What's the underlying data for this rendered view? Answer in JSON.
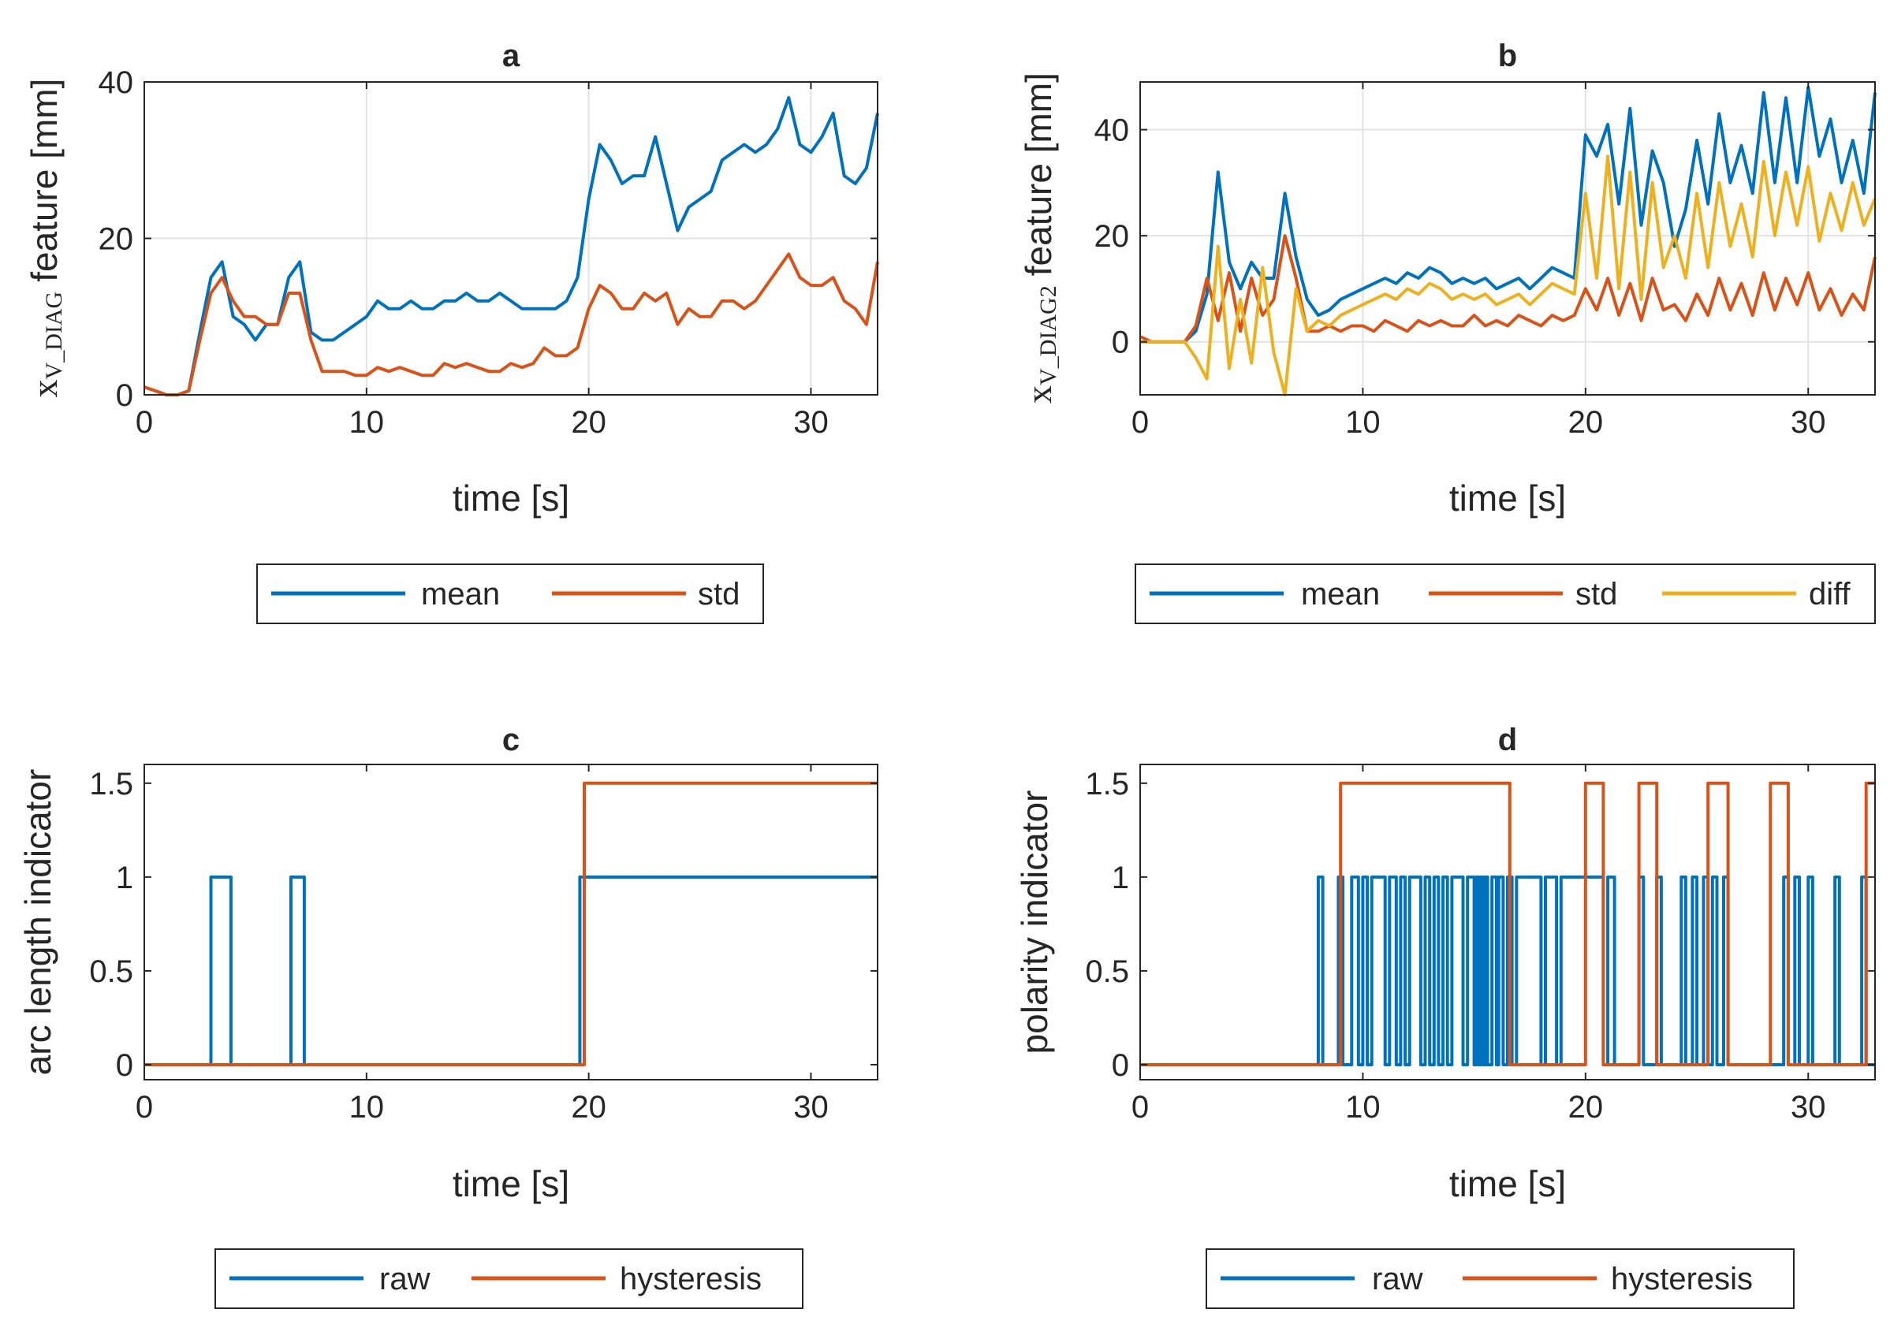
{
  "figure": {
    "xlabel": "time [s]",
    "colors": {
      "mean": "#0072BD",
      "std": "#D95319",
      "diff": "#EDB120",
      "axis": "#262626",
      "grid": "#e2e2e2"
    }
  },
  "chart_data": [
    {
      "id": "a",
      "type": "line",
      "title": "a",
      "xlabel": "time [s]",
      "ylabel": {
        "symbol": "x",
        "sub_pre": "V",
        "sub": "_DIAG",
        "text": "feature [mm]"
      },
      "xlim": [
        0,
        33
      ],
      "ylim": [
        0,
        40
      ],
      "xticks": [
        0,
        10,
        20,
        30
      ],
      "yticks": [
        0,
        20,
        40
      ],
      "grid": true,
      "legend_position": "bottom-outside",
      "series": [
        {
          "name": "mean",
          "color": "#0072BD",
          "x": [
            0,
            0.5,
            1,
            1.5,
            2,
            2.5,
            3,
            3.5,
            4,
            4.5,
            5,
            5.5,
            6,
            6.5,
            7,
            7.5,
            8,
            8.5,
            9,
            9.5,
            10,
            10.5,
            11,
            11.5,
            12,
            12.5,
            13,
            13.5,
            14,
            14.5,
            15,
            15.5,
            16,
            16.5,
            17,
            17.5,
            18,
            18.5,
            19,
            19.5,
            20,
            20.5,
            21,
            21.5,
            22,
            22.5,
            23,
            23.5,
            24,
            24.5,
            25,
            25.5,
            26,
            26.5,
            27,
            27.5,
            28,
            28.5,
            29,
            29.5,
            30,
            30.5,
            31,
            31.5,
            32,
            32.5,
            33
          ],
          "y": [
            1,
            0.5,
            0,
            0,
            0.5,
            8,
            15,
            17,
            10,
            9,
            7,
            9,
            9,
            15,
            17,
            8,
            7,
            7,
            8,
            9,
            10,
            12,
            11,
            11,
            12,
            11,
            11,
            12,
            12,
            13,
            12,
            12,
            13,
            12,
            11,
            11,
            11,
            11,
            12,
            15,
            25,
            32,
            30,
            27,
            28,
            28,
            33,
            27,
            21,
            24,
            25,
            26,
            30,
            31,
            32,
            31,
            32,
            34,
            38,
            32,
            31,
            33,
            36,
            28,
            27,
            29,
            36
          ]
        },
        {
          "name": "std",
          "color": "#D95319",
          "x": [
            0,
            0.5,
            1,
            1.5,
            2,
            2.5,
            3,
            3.5,
            4,
            4.5,
            5,
            5.5,
            6,
            6.5,
            7,
            7.5,
            8,
            8.5,
            9,
            9.5,
            10,
            10.5,
            11,
            11.5,
            12,
            12.5,
            13,
            13.5,
            14,
            14.5,
            15,
            15.5,
            16,
            16.5,
            17,
            17.5,
            18,
            18.5,
            19,
            19.5,
            20,
            20.5,
            21,
            21.5,
            22,
            22.5,
            23,
            23.5,
            24,
            24.5,
            25,
            25.5,
            26,
            26.5,
            27,
            27.5,
            28,
            28.5,
            29,
            29.5,
            30,
            30.5,
            31,
            31.5,
            32,
            32.5,
            33
          ],
          "y": [
            1,
            0.5,
            0,
            0,
            0.5,
            7,
            13,
            15,
            12,
            10,
            10,
            9,
            9,
            13,
            13,
            7,
            3,
            3,
            3,
            2.5,
            2.5,
            3.5,
            3,
            3.5,
            3,
            2.5,
            2.5,
            4,
            3.5,
            4,
            3.5,
            3,
            3,
            4,
            3.5,
            4,
            6,
            5,
            5,
            6,
            11,
            14,
            13,
            11,
            11,
            13,
            12,
            13,
            9,
            11,
            10,
            10,
            12,
            12,
            11,
            12,
            14,
            16,
            18,
            15,
            14,
            14,
            15,
            12,
            11,
            9,
            17
          ]
        }
      ]
    },
    {
      "id": "b",
      "type": "line",
      "title": "b",
      "xlabel": "time [s]",
      "ylabel": {
        "symbol": "x",
        "sub_pre": "V",
        "sub": "_DIAG2",
        "text": "feature [mm]"
      },
      "xlim": [
        0,
        33
      ],
      "ylim": [
        -10,
        49
      ],
      "xticks": [
        0,
        10,
        20,
        30
      ],
      "yticks": [
        0,
        20,
        40
      ],
      "grid": true,
      "legend_position": "bottom-outside",
      "series": [
        {
          "name": "mean",
          "color": "#0072BD",
          "x": [
            0,
            0.5,
            1,
            1.5,
            2,
            2.5,
            3,
            3.5,
            4,
            4.5,
            5,
            5.5,
            6,
            6.5,
            7,
            7.5,
            8,
            8.5,
            9,
            9.5,
            10,
            10.5,
            11,
            11.5,
            12,
            12.5,
            13,
            13.5,
            14,
            14.5,
            15,
            15.5,
            16,
            16.5,
            17,
            17.5,
            18,
            18.5,
            19,
            19.5,
            20,
            20.5,
            21,
            21.5,
            22,
            22.5,
            23,
            23.5,
            24,
            24.5,
            25,
            25.5,
            26,
            26.5,
            27,
            27.5,
            28,
            28.5,
            29,
            29.5,
            30,
            30.5,
            31,
            31.5,
            32,
            32.5,
            33
          ],
          "y": [
            0,
            0,
            0,
            0,
            0,
            2,
            9,
            32,
            15,
            10,
            15,
            12,
            12,
            28,
            16,
            8,
            5,
            6,
            8,
            9,
            10,
            11,
            12,
            11,
            13,
            12,
            14,
            13,
            11,
            12,
            11,
            12,
            10,
            11,
            12,
            10,
            12,
            14,
            13,
            12,
            39,
            35,
            41,
            26,
            44,
            22,
            36,
            30,
            18,
            25,
            38,
            26,
            43,
            30,
            37,
            28,
            47,
            30,
            46,
            30,
            48,
            35,
            42,
            30,
            38,
            28,
            47
          ]
        },
        {
          "name": "std",
          "color": "#D95319",
          "x": [
            0,
            0.5,
            1,
            1.5,
            2,
            2.5,
            3,
            3.5,
            4,
            4.5,
            5,
            5.5,
            6,
            6.5,
            7,
            7.5,
            8,
            8.5,
            9,
            9.5,
            10,
            10.5,
            11,
            11.5,
            12,
            12.5,
            13,
            13.5,
            14,
            14.5,
            15,
            15.5,
            16,
            16.5,
            17,
            17.5,
            18,
            18.5,
            19,
            19.5,
            20,
            20.5,
            21,
            21.5,
            22,
            22.5,
            23,
            23.5,
            24,
            24.5,
            25,
            25.5,
            26,
            26.5,
            27,
            27.5,
            28,
            28.5,
            29,
            29.5,
            30,
            30.5,
            31,
            31.5,
            32,
            32.5,
            33
          ],
          "y": [
            1,
            0,
            0,
            0,
            0,
            3,
            12,
            4,
            13,
            2,
            12,
            5,
            8,
            20,
            12,
            2,
            2,
            3,
            2,
            3,
            3,
            2,
            4,
            3,
            2,
            4,
            3,
            4,
            3,
            3,
            5,
            3,
            4,
            3,
            5,
            4,
            3,
            5,
            4,
            5,
            10,
            6,
            12,
            5,
            11,
            4,
            12,
            6,
            7,
            4,
            9,
            5,
            12,
            6,
            11,
            5,
            13,
            6,
            12,
            7,
            13,
            6,
            10,
            5,
            9,
            6,
            16
          ]
        },
        {
          "name": "diff",
          "color": "#EDB120",
          "x": [
            0,
            0.5,
            1,
            1.5,
            2,
            2.5,
            3,
            3.5,
            4,
            4.5,
            5,
            5.5,
            6,
            6.5,
            7,
            7.5,
            8,
            8.5,
            9,
            9.5,
            10,
            10.5,
            11,
            11.5,
            12,
            12.5,
            13,
            13.5,
            14,
            14.5,
            15,
            15.5,
            16,
            16.5,
            17,
            17.5,
            18,
            18.5,
            19,
            19.5,
            20,
            20.5,
            21,
            21.5,
            22,
            22.5,
            23,
            23.5,
            24,
            24.5,
            25,
            25.5,
            26,
            26.5,
            27,
            27.5,
            28,
            28.5,
            29,
            29.5,
            30,
            30.5,
            31,
            31.5,
            32,
            32.5,
            33
          ],
          "y": [
            0,
            0,
            0,
            0,
            0,
            -3,
            -7,
            18,
            -5,
            8,
            -4,
            14,
            -2,
            -10,
            10,
            2,
            4,
            3,
            5,
            6,
            7,
            8,
            9,
            8,
            10,
            9,
            11,
            10,
            8,
            9,
            8,
            9,
            7,
            8,
            9,
            7,
            9,
            11,
            10,
            9,
            28,
            12,
            35,
            10,
            32,
            8,
            30,
            14,
            20,
            12,
            28,
            14,
            30,
            18,
            26,
            16,
            34,
            20,
            32,
            22,
            33,
            19,
            28,
            21,
            30,
            22,
            27
          ]
        }
      ]
    },
    {
      "id": "c",
      "type": "line",
      "title": "c",
      "xlabel": "time [s]",
      "ylabel_text": "arc length indicator",
      "xlim": [
        0,
        33
      ],
      "ylim": [
        -0.08,
        1.6
      ],
      "xticks": [
        0,
        10,
        20,
        30
      ],
      "yticks": [
        0,
        0.5,
        1,
        1.5
      ],
      "grid": false,
      "legend_position": "bottom-outside",
      "series": [
        {
          "name": "raw",
          "color": "#0072BD",
          "step": true,
          "x": [
            0,
            3,
            3.9,
            6.6,
            7.2,
            19.6,
            33
          ],
          "y": [
            0,
            1,
            0,
            1,
            0,
            1,
            1
          ]
        },
        {
          "name": "hysteresis",
          "color": "#D95319",
          "step": true,
          "x": [
            0,
            19.8,
            33
          ],
          "y": [
            0,
            1.5,
            1.5
          ]
        }
      ]
    },
    {
      "id": "d",
      "type": "line",
      "title": "d",
      "xlabel": "time [s]",
      "ylabel_text": "polarity indicator",
      "xlim": [
        0,
        33
      ],
      "ylim": [
        -0.08,
        1.6
      ],
      "xticks": [
        0,
        10,
        20,
        30
      ],
      "yticks": [
        0,
        0.5,
        1,
        1.5
      ],
      "grid": false,
      "legend_position": "bottom-outside",
      "series": [
        {
          "name": "raw",
          "color": "#0072BD",
          "step": true,
          "x": [
            0,
            8.0,
            8.2,
            8.9,
            9.1,
            9.5,
            9.8,
            10.0,
            10.2,
            10.4,
            11.0,
            11.2,
            11.5,
            11.7,
            11.9,
            12.1,
            12.6,
            12.8,
            13.0,
            13.2,
            13.4,
            13.6,
            13.8,
            14.0,
            14.5,
            14.7,
            15.0,
            15.1,
            15.2,
            15.3,
            15.4,
            15.5,
            15.6,
            15.8,
            16.0,
            16.1,
            16.3,
            16.5,
            16.7,
            16.9,
            18.0,
            18.2,
            18.7,
            18.9,
            20.0,
            20.8,
            21.0,
            21.3,
            22.4,
            22.6,
            23.2,
            23.4,
            24.3,
            24.5,
            24.8,
            25.0,
            25.3,
            25.5,
            25.7,
            25.9,
            26.2,
            26.4,
            28.9,
            29.1,
            29.4,
            29.6,
            30.0,
            30.2,
            31.2,
            31.4,
            32.4,
            32.6,
            33.0
          ],
          "y": [
            0,
            1,
            0,
            1,
            0,
            1,
            0,
            1,
            0,
            1,
            0,
            1,
            0,
            1,
            0,
            1,
            0,
            1,
            0,
            1,
            0,
            1,
            0,
            1,
            0,
            1,
            0,
            1,
            0,
            1,
            0,
            1,
            0,
            1,
            0,
            1,
            0,
            1,
            0,
            1,
            0,
            1,
            0,
            1,
            1,
            0,
            1,
            0,
            1,
            0,
            1,
            0,
            1,
            0,
            1,
            0,
            1,
            0,
            1,
            0,
            1,
            0,
            1,
            0,
            1,
            0,
            1,
            0,
            1,
            0,
            1,
            0,
            0
          ]
        },
        {
          "name": "hysteresis",
          "color": "#D95319",
          "step": true,
          "x": [
            0,
            9.0,
            16.6,
            20.0,
            20.8,
            22.4,
            23.2,
            25.5,
            26.4,
            28.3,
            29.1,
            32.6,
            33
          ],
          "y": [
            0,
            1.5,
            0,
            1.5,
            0,
            1.5,
            0,
            1.5,
            0,
            1.5,
            0,
            1.5,
            1.5
          ]
        }
      ]
    }
  ]
}
